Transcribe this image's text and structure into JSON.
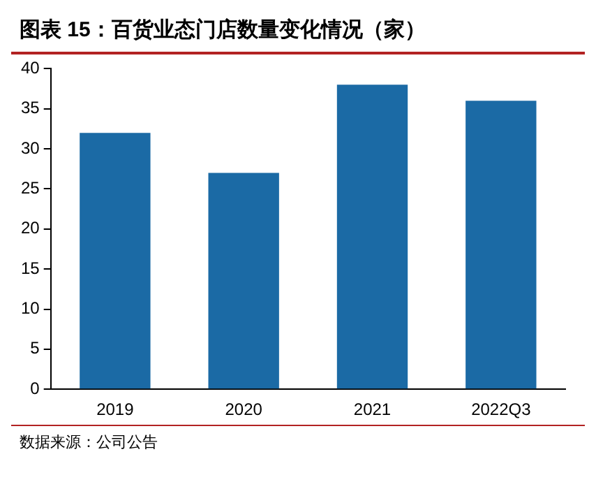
{
  "chart_data": {
    "type": "bar",
    "title": "图表 15：百货业态门店数量变化情况（家）",
    "categories": [
      "2019",
      "2020",
      "2021",
      "2022Q3"
    ],
    "values": [
      32,
      27,
      38,
      36
    ],
    "color": "#1b6aa5",
    "ylim": [
      0,
      40
    ],
    "yticks": [
      0,
      5,
      10,
      15,
      20,
      25,
      30,
      35,
      40
    ],
    "grid": false,
    "legend": false,
    "annotations": [
      "数据来源：公司公告"
    ]
  }
}
